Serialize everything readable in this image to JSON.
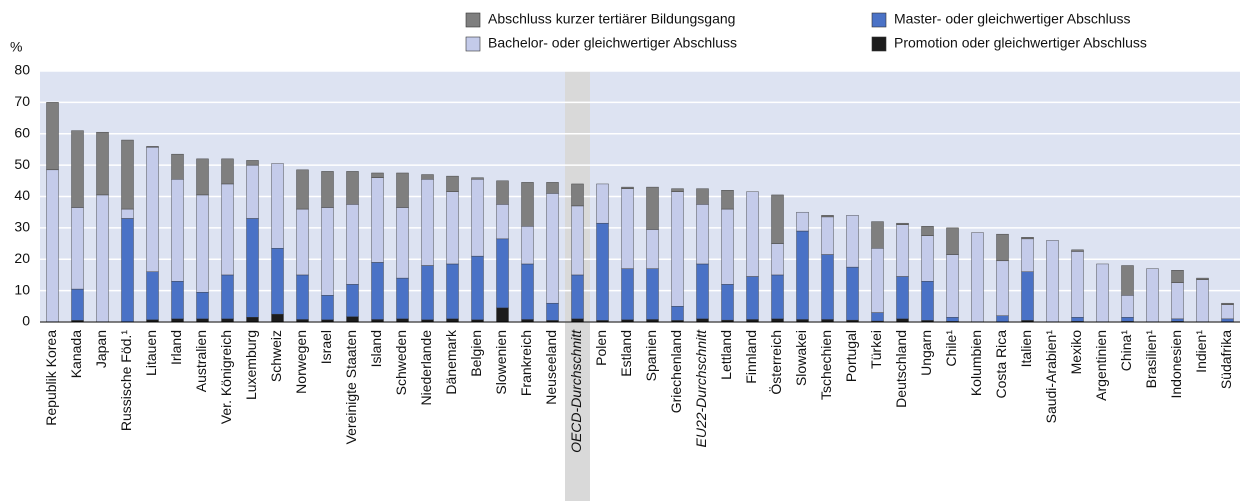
{
  "chart_data": {
    "type": "stacked_bar",
    "y_label": "%",
    "categories": [
      "Republik Korea",
      "Kanada",
      "Japan",
      "Russische Föd.¹",
      "Litauen",
      "Irland",
      "Australien",
      "Ver. Königreich",
      "Luxemburg",
      "Schweiz",
      "Norwegen",
      "Israel",
      "Vereinigte Staaten",
      "Island",
      "Schweden",
      "Niederlande",
      "Dänemark",
      "Belgien",
      "Slowenien",
      "Frankreich",
      "Neuseeland",
      "OECD-Durchschnitt",
      "Polen",
      "Estland",
      "Spanien",
      "Griechenland",
      "EU22-Durchschnitt",
      "Lettland",
      "Finnland",
      "Österreich",
      "Slowakei",
      "Tschechien",
      "Portugal",
      "Türkei",
      "Deutschland",
      "Ungarn",
      "Chile¹",
      "Kolumbien",
      "Costa Rica",
      "Italien",
      "Saudi-Arabien¹",
      "Mexiko",
      "Argentinien",
      "China¹",
      "Brasilien¹",
      "Indonesien",
      "Indien¹",
      "Südafrika"
    ],
    "highlight_categories": [
      "OECD-Durchschnitt"
    ],
    "italic_categories": [
      "OECD-Durchschnitt",
      "EU22-Durchschnitt"
    ],
    "series": [
      {
        "name": "Promotion oder gleichwertiger Abschluss",
        "color": "#1c1c1c",
        "values": [
          0,
          0.5,
          0,
          0,
          0.7,
          1,
          1,
          1,
          1.5,
          2.5,
          0.8,
          0.7,
          1.7,
          0.8,
          1,
          0.7,
          1,
          0.7,
          4.5,
          0.8,
          0.5,
          1,
          0.5,
          0.7,
          0.8,
          0.5,
          1,
          0.6,
          0.8,
          1,
          0.8,
          0.8,
          0.6,
          0.3,
          1,
          0.5,
          0.2,
          0,
          0,
          0.5,
          0,
          0.2,
          0,
          0.2,
          0,
          0.2,
          0,
          0
        ]
      },
      {
        "name": "Master- oder gleichwertiger Abschluss",
        "color": "#4a72c6",
        "values": [
          0,
          10,
          0,
          33,
          15.3,
          12,
          8.5,
          14,
          31.5,
          21,
          14.2,
          7.8,
          10.3,
          18.2,
          13,
          17.3,
          17.5,
          20.3,
          22,
          17.7,
          5.5,
          14,
          31,
          16.3,
          16.2,
          4.5,
          17.5,
          11.4,
          13.7,
          14,
          28.2,
          20.7,
          16.9,
          2.7,
          13.5,
          12.5,
          1.3,
          0,
          2,
          15.5,
          0,
          1.3,
          0,
          1.3,
          0,
          0.8,
          0,
          1
        ]
      },
      {
        "name": "Bachelor- oder gleichwertiger Abschluss",
        "color": "#c4cbea",
        "values": [
          48.5,
          26,
          40.5,
          3,
          39.7,
          32.5,
          31,
          29,
          17,
          27,
          21,
          28,
          25.5,
          27,
          22.5,
          27.5,
          23,
          24.5,
          11,
          12,
          35,
          22,
          12.5,
          25.5,
          12.5,
          36.5,
          19,
          24,
          27,
          10,
          6,
          12,
          16.5,
          20.5,
          16.5,
          14.5,
          20,
          28.5,
          17.5,
          10.5,
          26,
          21,
          18.5,
          7,
          17,
          11.5,
          13.5,
          4.5
        ]
      },
      {
        "name": "Abschluss kurzer tertiärer Bildungsgang",
        "color": "#7f7f7f",
        "values": [
          21.5,
          24.5,
          20,
          22,
          0.3,
          8,
          11.5,
          8,
          1.5,
          0,
          12.5,
          11.5,
          10.5,
          1.5,
          11,
          1.5,
          5,
          0.5,
          7.5,
          14,
          3.5,
          7,
          0,
          0.5,
          13.5,
          1,
          5,
          6,
          0,
          15.5,
          0,
          0.5,
          0,
          8.5,
          0.5,
          3,
          8.5,
          0,
          8.5,
          0.5,
          0,
          0.5,
          0,
          9.5,
          0,
          4,
          0.5,
          0.5
        ]
      }
    ],
    "ylim": [
      0,
      80
    ],
    "yticks": [
      0,
      10,
      20,
      30,
      40,
      50,
      60,
      70,
      80
    ],
    "grid": true
  }
}
